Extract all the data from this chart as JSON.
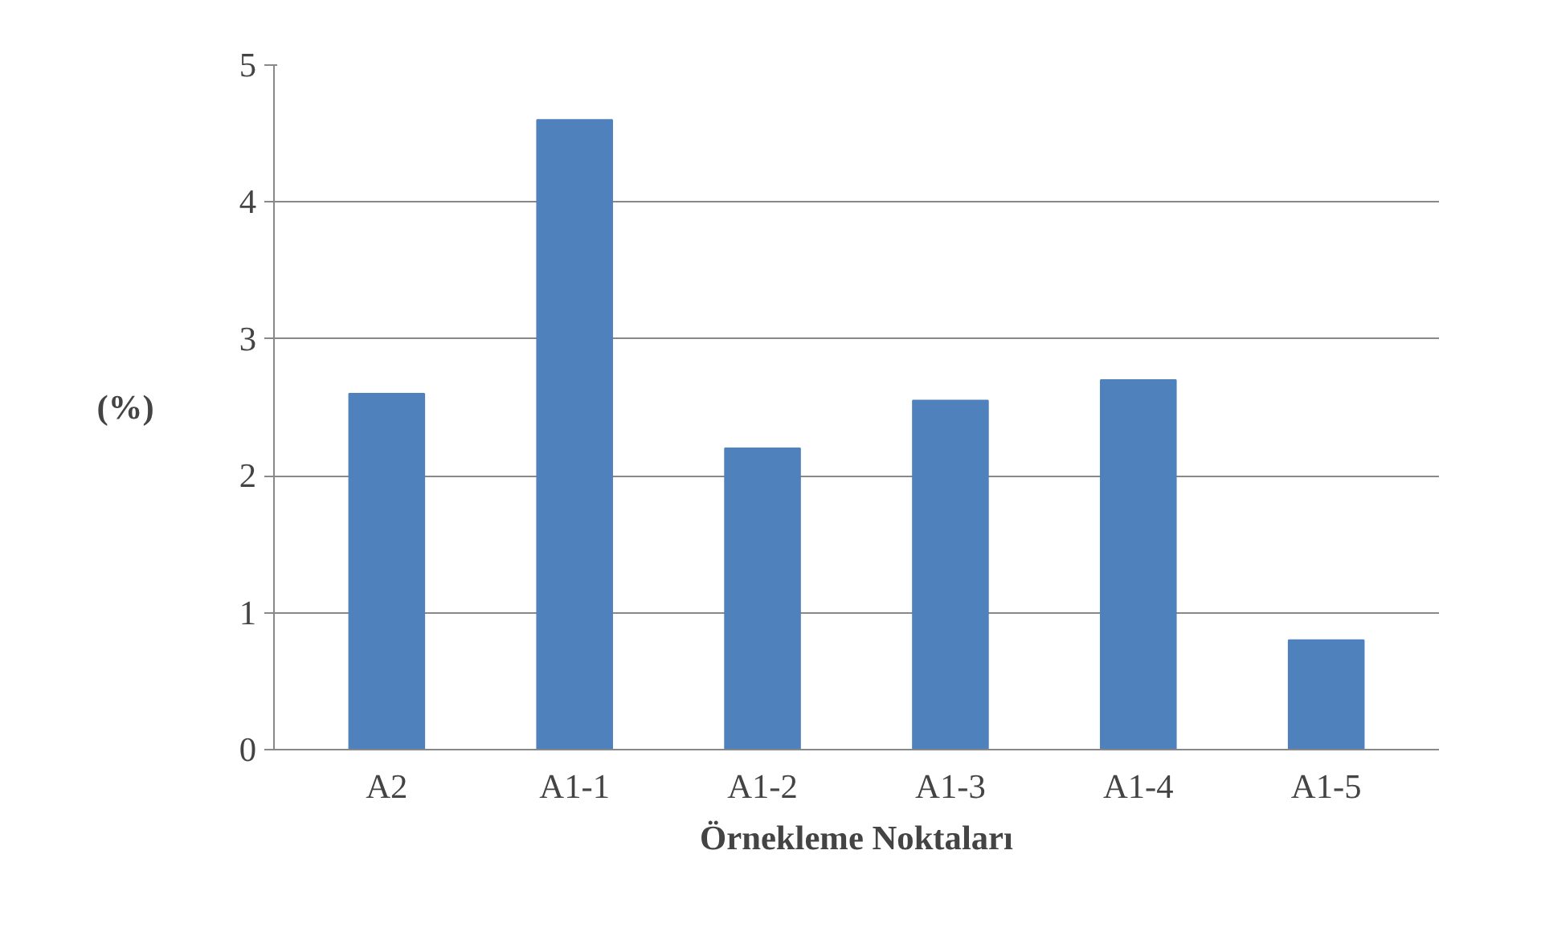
{
  "chart_data": {
    "type": "bar",
    "xlabel": "Örnekleme Noktaları",
    "ylabel": "(%)",
    "categories": [
      "A2",
      "A1-1",
      "A1-2",
      "A1-3",
      "A1-4",
      "A1-5"
    ],
    "values": [
      2.6,
      4.6,
      2.2,
      2.55,
      2.7,
      0.8
    ],
    "color": "#4f81bd",
    "ylim": [
      0,
      5
    ],
    "yticks": [
      0,
      1,
      2,
      3,
      4,
      5
    ],
    "grid": "y"
  }
}
